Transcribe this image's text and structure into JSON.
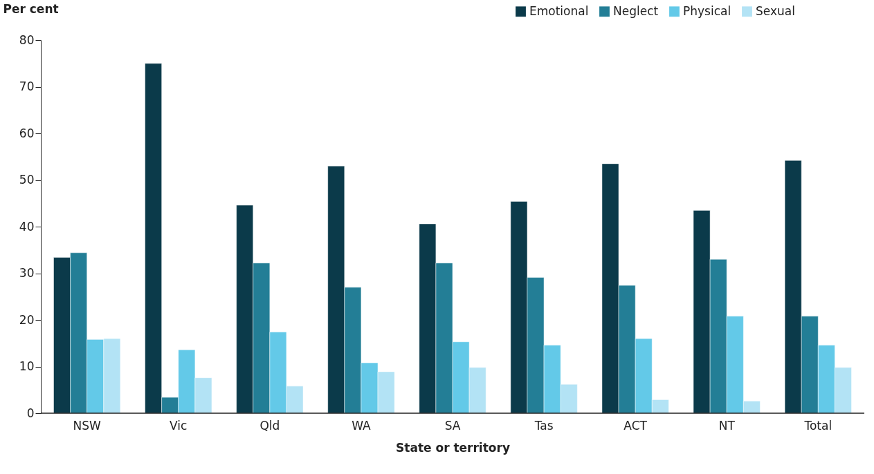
{
  "chart_data": {
    "type": "bar",
    "xlabel": "State or territory",
    "ylabel": "Per cent",
    "categories": [
      "NSW",
      "Vic",
      "Qld",
      "WA",
      "SA",
      "Tas",
      "ACT",
      "NT",
      "Total"
    ],
    "series": [
      {
        "name": "Emotional",
        "color": "#0b3a4a",
        "values": [
          33.4,
          75.0,
          44.6,
          53.0,
          40.6,
          45.4,
          53.5,
          43.5,
          54.2
        ]
      },
      {
        "name": "Neglect",
        "color": "#237e96",
        "values": [
          34.4,
          3.4,
          32.2,
          27.0,
          32.2,
          29.1,
          27.4,
          33.0,
          20.8
        ]
      },
      {
        "name": "Physical",
        "color": "#63c9e8",
        "values": [
          15.8,
          13.6,
          17.4,
          10.8,
          15.3,
          14.6,
          16.0,
          20.8,
          14.6
        ]
      },
      {
        "name": "Sexual",
        "color": "#b3e3f5",
        "values": [
          16.0,
          7.6,
          5.8,
          8.9,
          9.8,
          6.2,
          2.9,
          2.6,
          9.8
        ]
      }
    ],
    "ylim": [
      0,
      80
    ],
    "yticks": [
      0,
      10,
      20,
      30,
      40,
      50,
      60,
      70,
      80
    ],
    "grid": false,
    "legend": "top right"
  }
}
